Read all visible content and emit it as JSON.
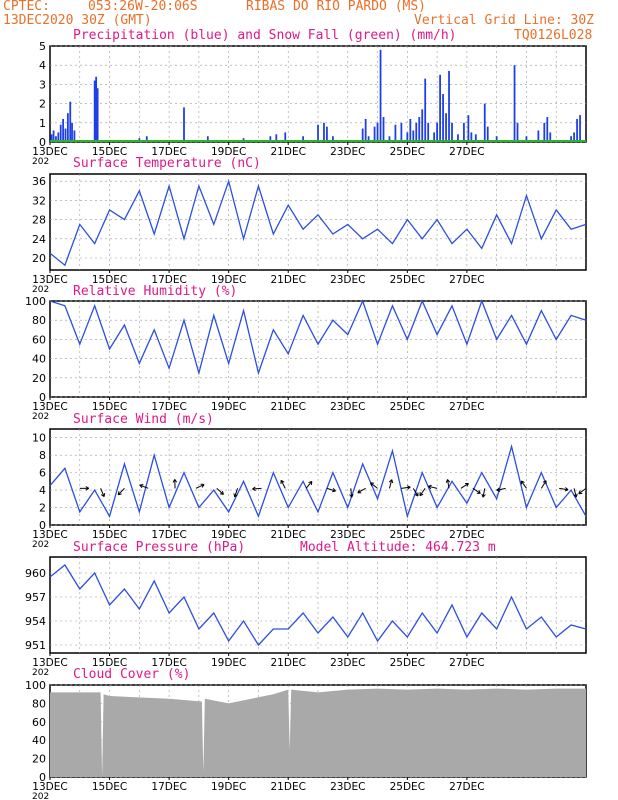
{
  "header": {
    "source": "CPTEC:",
    "coords": "053:26W-20:06S",
    "location": "RIBAS DO RIO PARDO (MS)",
    "date": "13DEC2020 30Z (GMT)",
    "grid_note": "Vertical Grid Line: 30Z",
    "run_code": "TQ0126L028"
  },
  "colors": {
    "header_text": "#e8702a",
    "title_text": "#e0188a",
    "precip": "#1f3fe6",
    "snow": "#2bb52b",
    "line": "#2d4ee0",
    "wind_arrow": "#000000",
    "cloud": "#a9a9a9",
    "grid": "#9a9a9a"
  },
  "x_tick_labels": [
    "13DEC",
    "15DEC",
    "17DEC",
    "19DEC",
    "21DEC",
    "23DEC",
    "25DEC",
    "27DEC"
  ],
  "x_tick_suffix": "202",
  "chart_data": [
    {
      "type": "bar",
      "title": "Precipitation (blue) and Snow Fall (green) (mm/h)",
      "ylim": [
        0,
        5
      ],
      "yticks": [
        "0",
        "1",
        "2",
        "3",
        "4",
        "5"
      ],
      "x_unit": "days after 13DEC 00Z",
      "series": [
        {
          "name": "Precipitation (blue)",
          "bars": [
            [
              0.05,
              0.4
            ],
            [
              0.12,
              0.6
            ],
            [
              0.2,
              0.3
            ],
            [
              0.28,
              0.5
            ],
            [
              0.36,
              0.9
            ],
            [
              0.44,
              1.2
            ],
            [
              0.52,
              0.7
            ],
            [
              0.6,
              1.5
            ],
            [
              0.68,
              2.1
            ],
            [
              0.74,
              1.0
            ],
            [
              0.82,
              0.6
            ],
            [
              1.5,
              3.2
            ],
            [
              1.55,
              3.4
            ],
            [
              1.6,
              2.8
            ],
            [
              3.0,
              0.2
            ],
            [
              3.25,
              0.3
            ],
            [
              4.5,
              1.8
            ],
            [
              5.3,
              0.3
            ],
            [
              6.5,
              0.2
            ],
            [
              7.4,
              0.3
            ],
            [
              7.6,
              0.4
            ],
            [
              7.9,
              0.5
            ],
            [
              8.5,
              0.3
            ],
            [
              9.0,
              0.9
            ],
            [
              9.2,
              1.0
            ],
            [
              9.3,
              0.8
            ],
            [
              9.5,
              0.3
            ],
            [
              10.5,
              0.7
            ],
            [
              10.6,
              1.2
            ],
            [
              10.7,
              0.3
            ],
            [
              10.9,
              0.8
            ],
            [
              11.0,
              1.0
            ],
            [
              11.1,
              4.8
            ],
            [
              11.2,
              1.3
            ],
            [
              11.4,
              0.3
            ],
            [
              11.6,
              0.9
            ],
            [
              11.8,
              1.0
            ],
            [
              12.0,
              0.5
            ],
            [
              12.1,
              1.2
            ],
            [
              12.2,
              0.6
            ],
            [
              12.3,
              1.0
            ],
            [
              12.4,
              1.3
            ],
            [
              12.5,
              1.7
            ],
            [
              12.6,
              3.3
            ],
            [
              12.7,
              1.0
            ],
            [
              12.9,
              0.5
            ],
            [
              13.0,
              1.0
            ],
            [
              13.1,
              3.5
            ],
            [
              13.2,
              2.5
            ],
            [
              13.3,
              1.5
            ],
            [
              13.4,
              3.7
            ],
            [
              13.5,
              1.0
            ],
            [
              13.7,
              0.4
            ],
            [
              13.9,
              1.0
            ],
            [
              14.05,
              1.4
            ],
            [
              14.15,
              0.5
            ],
            [
              14.3,
              0.4
            ],
            [
              14.6,
              2.0
            ],
            [
              14.7,
              0.8
            ],
            [
              15.0,
              0.3
            ],
            [
              15.6,
              4.0
            ],
            [
              15.7,
              1.0
            ],
            [
              16.0,
              0.3
            ],
            [
              16.4,
              0.6
            ],
            [
              16.6,
              1.0
            ],
            [
              16.7,
              1.3
            ],
            [
              16.8,
              0.5
            ],
            [
              17.5,
              0.3
            ],
            [
              17.6,
              0.5
            ],
            [
              17.7,
              1.2
            ],
            [
              17.8,
              1.4
            ]
          ]
        },
        {
          "name": "Snow Fall (green)",
          "bars": []
        }
      ]
    },
    {
      "type": "line",
      "title": "Surface Temperature (nC)",
      "ylim": [
        17.5,
        37.5
      ],
      "yticks": [
        "20",
        "24",
        "28",
        "32",
        "36"
      ],
      "series": [
        {
          "x": [
            0,
            0.5,
            1.0,
            1.5,
            2.0,
            2.5,
            3.0,
            3.5,
            4.0,
            4.5,
            5.0,
            5.5,
            6.0,
            6.5,
            7.0,
            7.5,
            8.0,
            8.5,
            9.0,
            9.5,
            10.0,
            10.5,
            11.0,
            11.5,
            12.0,
            12.5,
            13.0,
            13.5,
            14.0,
            14.5,
            15.0,
            15.5,
            16.0,
            16.5,
            17.0,
            17.5,
            18.0
          ],
          "y": [
            21,
            18.5,
            27,
            23,
            30,
            28,
            34,
            25,
            35,
            24,
            35,
            27,
            36,
            24,
            35,
            25,
            31,
            26,
            29,
            25,
            27,
            24,
            26,
            23,
            28,
            24,
            28,
            23,
            26,
            22,
            29,
            23,
            33,
            24,
            30,
            26,
            27
          ]
        }
      ]
    },
    {
      "type": "line",
      "title": "Relative Humidity (%)",
      "ylim": [
        0,
        100
      ],
      "yticks": [
        "0",
        "20",
        "40",
        "60",
        "80",
        "100"
      ],
      "series": [
        {
          "x": [
            0,
            0.5,
            1.0,
            1.5,
            2.0,
            2.5,
            3.0,
            3.5,
            4.0,
            4.5,
            5.0,
            5.5,
            6.0,
            6.5,
            7.0,
            7.5,
            8.0,
            8.5,
            9.0,
            9.5,
            10.0,
            10.5,
            11.0,
            11.5,
            12.0,
            12.5,
            13.0,
            13.5,
            14.0,
            14.5,
            15.0,
            15.5,
            16.0,
            16.5,
            17.0,
            17.5,
            18.0
          ],
          "y": [
            100,
            95,
            55,
            95,
            50,
            75,
            35,
            70,
            30,
            80,
            25,
            85,
            35,
            90,
            25,
            70,
            45,
            85,
            55,
            80,
            65,
            100,
            55,
            95,
            60,
            100,
            65,
            95,
            55,
            100,
            60,
            85,
            55,
            90,
            60,
            85,
            80
          ]
        }
      ]
    },
    {
      "type": "line",
      "title": "Surface Wind (m/s)",
      "ylim": [
        0,
        11
      ],
      "yticks": [
        "0",
        "2",
        "4",
        "6",
        "8",
        "10"
      ],
      "series": [
        {
          "x": [
            0,
            0.5,
            1.0,
            1.5,
            2.0,
            2.5,
            3.0,
            3.5,
            4.0,
            4.5,
            5.0,
            5.5,
            6.0,
            6.5,
            7.0,
            7.5,
            8.0,
            8.5,
            9.0,
            9.5,
            10.0,
            10.5,
            11.0,
            11.5,
            12.0,
            12.5,
            13.0,
            13.5,
            14.0,
            14.5,
            15.0,
            15.5,
            16.0,
            16.5,
            17.0,
            17.5,
            18.0
          ],
          "y": [
            4.5,
            6.5,
            1.5,
            4,
            1,
            7,
            1.5,
            8,
            2,
            6,
            2,
            4,
            1.5,
            5,
            1,
            6,
            2,
            5,
            1.5,
            6,
            2,
            7,
            3,
            8.5,
            1,
            6,
            2,
            5,
            2.5,
            6,
            3,
            9,
            2,
            6,
            2,
            4,
            1
          ]
        }
      ],
      "arrow_times": [
        1,
        1.7,
        2.5,
        3.3,
        4.2,
        4.9,
        5.6,
        6.3,
        7.1,
        7.9,
        8.6,
        9.3,
        10.1,
        10.6,
        11.0,
        11.4,
        11.8,
        12.2,
        12.6,
        13.0,
        13.4,
        13.8,
        14.2,
        14.6,
        15.3,
        16.0,
        16.5,
        17.1,
        17.6,
        18.0
      ]
    },
    {
      "type": "line",
      "title": "Surface Pressure (hPa)",
      "subtitle": "Model Altitude: 464.723 m",
      "ylim": [
        950,
        962
      ],
      "yticks": [
        "951",
        "954",
        "957",
        "960"
      ],
      "series": [
        {
          "x": [
            0,
            0.5,
            1.0,
            1.5,
            2.0,
            2.5,
            3.0,
            3.5,
            4.0,
            4.5,
            5.0,
            5.5,
            6.0,
            6.5,
            7.0,
            7.5,
            8.0,
            8.5,
            9.0,
            9.5,
            10.0,
            10.5,
            11.0,
            11.5,
            12.0,
            12.5,
            13.0,
            13.5,
            14.0,
            14.5,
            15.0,
            15.5,
            16.0,
            16.5,
            17.0,
            17.5,
            18.0
          ],
          "y": [
            959.5,
            961,
            958,
            960,
            956,
            958,
            955.5,
            959,
            955,
            957,
            953,
            955,
            951.5,
            954,
            951,
            953,
            953,
            955,
            952.5,
            954.5,
            952,
            955,
            951.5,
            954,
            952,
            955,
            952.5,
            956,
            952,
            955,
            953,
            957,
            953,
            954.5,
            952,
            953.5,
            953
          ]
        }
      ]
    },
    {
      "type": "area",
      "title": "Cloud Cover (%)",
      "ylim": [
        0,
        100
      ],
      "yticks": [
        "0",
        "20",
        "40",
        "60",
        "80",
        "100"
      ],
      "series": [
        {
          "x": [
            0,
            1.7,
            1.75,
            1.8,
            2,
            4,
            5.1,
            5.15,
            5.2,
            6,
            7.5,
            8.0,
            8.05,
            8.1,
            9.0,
            10,
            11,
            12,
            13,
            14,
            15,
            16,
            17,
            18
          ],
          "y": [
            92,
            92,
            0,
            90,
            88,
            85,
            82,
            5,
            85,
            80,
            90,
            95,
            30,
            95,
            92,
            95,
            96,
            95,
            96,
            95,
            96,
            95,
            96,
            96
          ]
        }
      ]
    }
  ]
}
